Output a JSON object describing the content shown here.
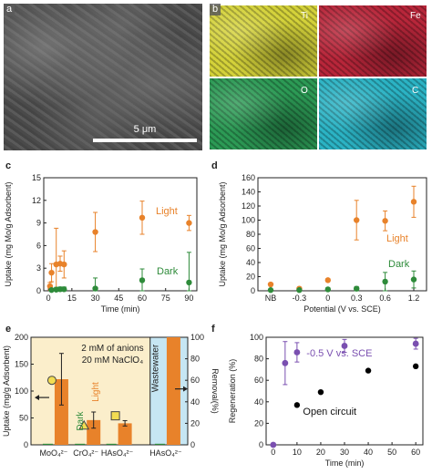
{
  "panel_labels": {
    "a": "a",
    "b": "b",
    "c": "c",
    "d": "d",
    "e": "e",
    "f": "f"
  },
  "panel_a": {
    "scale_bar": "5 μm"
  },
  "panel_b": {
    "maps": [
      {
        "label": "Ti",
        "color": "#d4d23a"
      },
      {
        "label": "Fe",
        "color": "#b8263a"
      },
      {
        "label": "O",
        "color": "#2c9a55"
      },
      {
        "label": "C",
        "color": "#2bb3c4"
      }
    ]
  },
  "chart_data": [
    {
      "id": "c",
      "type": "scatter",
      "xlabel": "Time (min)",
      "ylabel": "Uptake (mg Mo/g Adsorbent)",
      "xlim": [
        -3,
        95
      ],
      "ylim": [
        0,
        15
      ],
      "xticks": [
        0,
        15,
        30,
        45,
        60,
        75,
        90
      ],
      "yticks": [
        0,
        3,
        6,
        9,
        12,
        15
      ],
      "series": [
        {
          "name": "Light",
          "color": "#e8822a",
          "points": [
            {
              "x": 1,
              "y": 0.6,
              "err": 0.5
            },
            {
              "x": 2,
              "y": 2.4,
              "err": 1.2
            },
            {
              "x": 5,
              "y": 3.5,
              "err": 4.8
            },
            {
              "x": 7.5,
              "y": 3.6,
              "err": 1.0
            },
            {
              "x": 10,
              "y": 3.5,
              "err": 1.8
            },
            {
              "x": 30,
              "y": 7.8,
              "err": 2.6
            },
            {
              "x": 60,
              "y": 9.7,
              "err": 2.2
            },
            {
              "x": 90,
              "y": 9.0,
              "err": 1.0
            }
          ]
        },
        {
          "name": "Dark",
          "color": "#2e8b3a",
          "points": [
            {
              "x": 2,
              "y": 0.1,
              "err": 0.2
            },
            {
              "x": 5,
              "y": 0.15,
              "err": 0.3
            },
            {
              "x": 7.5,
              "y": 0.2,
              "err": 0.3
            },
            {
              "x": 10,
              "y": 0.2,
              "err": 0.3
            },
            {
              "x": 30,
              "y": 0.3,
              "err": 1.4
            },
            {
              "x": 60,
              "y": 1.4,
              "err": 1.5
            },
            {
              "x": 90,
              "y": 1.1,
              "err": 4.0
            }
          ]
        }
      ],
      "annotations": [
        "Light",
        "Dark"
      ]
    },
    {
      "id": "d",
      "type": "scatter",
      "xlabel": "Potential (V vs. SCE)",
      "ylabel": "Uptake (mg Mo/g Adsorbent)",
      "categories": [
        "NB",
        "-0.3",
        "0",
        "0.3",
        "0.6",
        "1.2"
      ],
      "ylim": [
        0,
        160
      ],
      "yticks": [
        0,
        20,
        40,
        60,
        80,
        100,
        120,
        140,
        160
      ],
      "series": [
        {
          "name": "Light",
          "color": "#e8822a",
          "values": [
            9,
            3,
            15,
            100,
            99,
            126
          ],
          "err": [
            2,
            2,
            2,
            28,
            14,
            22
          ]
        },
        {
          "name": "Dark",
          "color": "#2e8b3a",
          "values": [
            1,
            1,
            2,
            3,
            13,
            16
          ],
          "err": [
            1,
            1,
            1,
            3,
            13,
            12
          ]
        }
      ],
      "annotations": [
        "Light",
        "Dark"
      ]
    },
    {
      "id": "e",
      "type": "bar",
      "ylabel": "Uptake (mg/g Adsorbent)",
      "y2label": "Removal(%)",
      "categories": [
        "MoO₄²⁻",
        "CrO₄²⁻",
        "HAsO₄²⁻",
        "HAsO₄²⁻"
      ],
      "ylim": [
        0,
        200
      ],
      "yticks": [
        0,
        50,
        100,
        150,
        200
      ],
      "y2lim": [
        0,
        100
      ],
      "y2ticks": [
        0,
        20,
        40,
        60,
        80,
        100
      ],
      "series": [
        {
          "name": "Dark",
          "color": "#2e8b3a",
          "values": [
            2,
            2,
            2,
            2
          ]
        },
        {
          "name": "Light",
          "color": "#e8822a",
          "values": [
            122,
            46,
            40,
            205
          ],
          "err": [
            48,
            15,
            5,
            0
          ]
        }
      ],
      "removal_markers": [
        {
          "category": "MoO₄²⁻",
          "shape": "circle",
          "value": 60
        },
        {
          "category": "CrO₄²⁻",
          "shape": "triangle",
          "value": 18
        },
        {
          "category": "HAsO₄²⁻",
          "shape": "square",
          "value": 27
        }
      ],
      "annotations": [
        "2 mM of anions",
        "20 mM NaClO₄",
        "Dark",
        "Light",
        "Wastewater"
      ],
      "colors": {
        "background": "#fbeecb",
        "wastewater_background": "#c6e6f3"
      }
    },
    {
      "id": "f",
      "type": "scatter",
      "xlabel": "Time (min)",
      "ylabel": "Regeneration (%)",
      "xlim": [
        -3,
        63
      ],
      "ylim": [
        0,
        100
      ],
      "xticks": [
        0,
        10,
        20,
        30,
        40,
        50,
        60
      ],
      "yticks": [
        0,
        20,
        40,
        60,
        80,
        100
      ],
      "series": [
        {
          "name": "-0.5 V vs. SCE",
          "color": "#7a4fb0",
          "points": [
            {
              "x": 0,
              "y": 0,
              "err": 0
            },
            {
              "x": 5,
              "y": 76,
              "err": 20
            },
            {
              "x": 10,
              "y": 86,
              "err": 9
            },
            {
              "x": 30,
              "y": 92,
              "err": 6
            },
            {
              "x": 60,
              "y": 94,
              "err": 5
            }
          ]
        },
        {
          "name": "Open circuit",
          "color": "#000000",
          "points": [
            {
              "x": 10,
              "y": 37
            },
            {
              "x": 20,
              "y": 49
            },
            {
              "x": 40,
              "y": 69
            },
            {
              "x": 60,
              "y": 73
            }
          ]
        }
      ],
      "annotations": [
        "-0.5 V vs. SCE",
        "Open circuit"
      ]
    }
  ]
}
